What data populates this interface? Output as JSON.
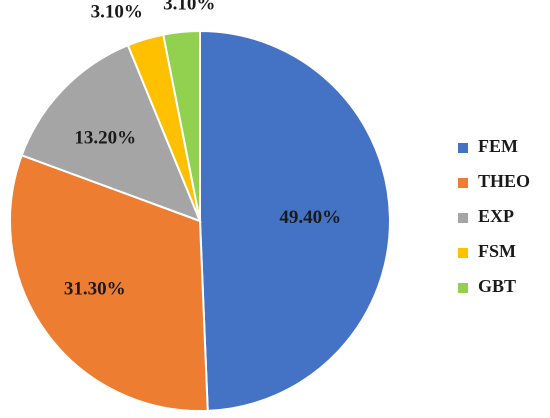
{
  "chart_data": {
    "type": "pie",
    "categories": [
      "FEM",
      "THEO",
      "EXP",
      "FSM",
      "GBT"
    ],
    "values": [
      49.4,
      31.3,
      13.2,
      3.1,
      3.1
    ],
    "data_labels": [
      "49.40%",
      "31.30%",
      "13.20%",
      "3.10%",
      "3.10%"
    ],
    "colors": [
      "#4472C4",
      "#ED7D31",
      "#A5A5A5",
      "#FFC000",
      "#92D050"
    ],
    "start_position": "12 o'clock",
    "direction": "clockwise",
    "legend_position": "right",
    "title": ""
  }
}
